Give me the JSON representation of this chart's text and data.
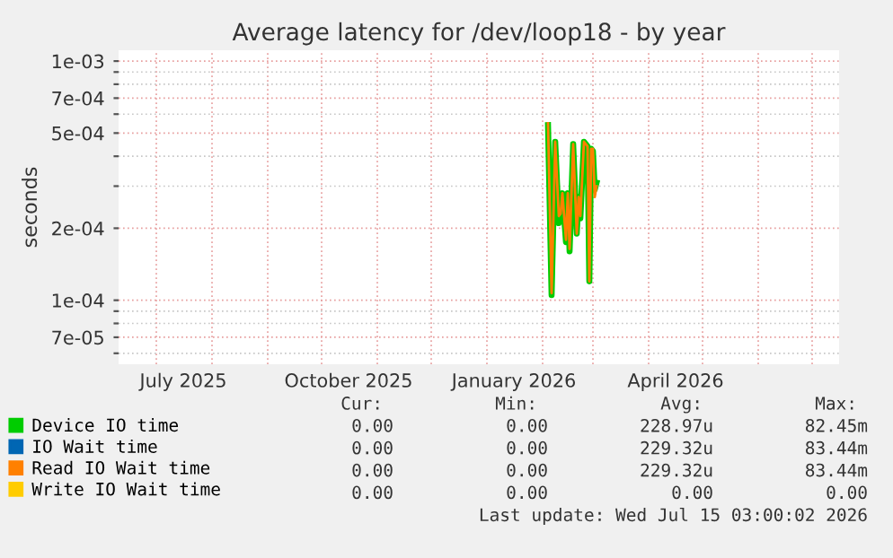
{
  "chart_data": {
    "type": "line",
    "title": "Average latency for /dev/loop18 - by year",
    "ylabel": "seconds",
    "log": "y",
    "grid": true,
    "legend": "bottom",
    "marker": "none",
    "line_style": "solid",
    "xlim": [
      "2025-06-10",
      "2026-07-16"
    ],
    "xticks": [
      {
        "value": "2025-07-01",
        "label": null
      },
      {
        "value": "2025-07-16",
        "label": "July 2025"
      },
      {
        "value": "2025-08-01",
        "label": null
      },
      {
        "value": "2025-09-01",
        "label": null
      },
      {
        "value": "2025-10-01",
        "label": null
      },
      {
        "value": "2025-10-16",
        "label": "October 2025"
      },
      {
        "value": "2025-11-01",
        "label": null
      },
      {
        "value": "2025-12-01",
        "label": null
      },
      {
        "value": "2026-01-01",
        "label": null
      },
      {
        "value": "2026-01-16",
        "label": "January 2026"
      },
      {
        "value": "2026-02-01",
        "label": null
      },
      {
        "value": "2026-03-01",
        "label": null
      },
      {
        "value": "2026-04-01",
        "label": null
      },
      {
        "value": "2026-04-16",
        "label": "April 2026"
      },
      {
        "value": "2026-05-01",
        "label": null
      },
      {
        "value": "2026-06-01",
        "label": null
      },
      {
        "value": "2026-07-01",
        "label": null
      }
    ],
    "ylim": [
      5.4e-05,
      0.00111
    ],
    "yticks": [
      {
        "value": 6e-05,
        "label": null
      },
      {
        "value": 7e-05,
        "label": "7e-05"
      },
      {
        "value": 8e-05,
        "label": null
      },
      {
        "value": 9e-05,
        "label": null
      },
      {
        "value": 0.0001,
        "label": "1e-04"
      },
      {
        "value": 0.0002,
        "label": "2e-04"
      },
      {
        "value": 0.0003,
        "label": null
      },
      {
        "value": 0.0004,
        "label": null
      },
      {
        "value": 0.0005,
        "label": "5e-04"
      },
      {
        "value": 0.0006,
        "label": null
      },
      {
        "value": 0.0007,
        "label": "7e-04"
      },
      {
        "value": 0.0008,
        "label": null
      },
      {
        "value": 0.0009,
        "label": null
      },
      {
        "value": 0.001,
        "label": "1e-03"
      }
    ],
    "x": [
      "2026-02-04",
      "2026-02-06",
      "2026-02-08",
      "2026-02-10",
      "2026-02-11",
      "2026-02-12",
      "2026-02-14",
      "2026-02-15",
      "2026-02-16",
      "2026-02-18",
      "2026-02-20",
      "2026-02-21",
      "2026-02-22",
      "2026-02-24",
      "2026-02-26",
      "2026-02-27",
      "2026-02-28",
      "2026-03-01",
      "2026-03-02",
      "2026-03-03"
    ],
    "series": [
      {
        "name": "Device IO time",
        "color": "#00cc00",
        "values": [
          0.00054,
          0.000105,
          0.00046,
          0.00021,
          0.00023,
          0.00028,
          0.000175,
          0.00028,
          0.00016,
          0.00045,
          0.00019,
          0.00027,
          0.00022,
          0.00046,
          0.00044,
          0.00012,
          0.00043,
          0.00042,
          0.00029,
          0.00031
        ]
      },
      {
        "name": "IO Wait time",
        "color": "#0066b3",
        "values": [
          null,
          null,
          null,
          null,
          null,
          null,
          null,
          null,
          null,
          null,
          null,
          null,
          null,
          null,
          null,
          null,
          null,
          null,
          null,
          null
        ]
      },
      {
        "name": "Read IO Wait time",
        "color": "#ff8000",
        "values": [
          0.00055,
          0.000107,
          0.00046,
          0.000225,
          0.00023,
          0.00028,
          0.000179,
          0.00028,
          0.000164,
          0.00045,
          0.00019,
          0.00027,
          0.000225,
          0.00046,
          0.00044,
          0.00012,
          0.00043,
          0.00043,
          0.00027,
          0.0003
        ]
      },
      {
        "name": "Write IO Wait time",
        "color": "#ffcc00",
        "values": [
          null,
          null,
          null,
          null,
          null,
          null,
          null,
          null,
          null,
          null,
          null,
          null,
          null,
          null,
          null,
          null,
          null,
          null,
          null,
          null
        ]
      }
    ],
    "annotations": [
      "Cur:",
      "Min:",
      "Avg:",
      "Max:",
      "0.00",
      "0.00",
      "228.97u",
      "82.45m",
      "0.00",
      "0.00",
      "229.32u",
      "83.44m",
      "0.00",
      "0.00",
      "229.32u",
      "83.44m",
      "0.00",
      "0.00",
      "0.00",
      "0.00",
      "Last update: Wed Jul 15 03:00:02 2026"
    ]
  }
}
